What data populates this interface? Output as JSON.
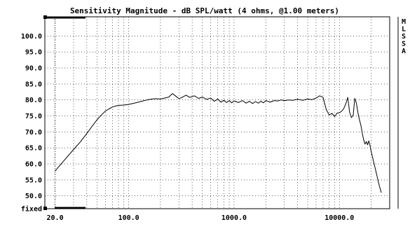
{
  "chart_data": {
    "type": "line",
    "title": "Sensitivity Magnitude - dB SPL/watt (4 ohms, @1.00 meters)",
    "xlabel": "",
    "ylabel": "",
    "x_scale": "log",
    "xlim": [
      16,
      30000
    ],
    "ylim": [
      46,
      106
    ],
    "y_ticks": [
      50,
      55,
      60,
      65,
      70,
      75,
      80,
      85,
      90,
      95,
      100
    ],
    "y_tick_labels": [
      "50.0",
      "55.0",
      "60.0",
      "65.0",
      "70.0",
      "75.0",
      "80.0",
      "85.0",
      "90.0",
      "95.0",
      "100.0"
    ],
    "y_bottom_label": "fixed",
    "x_ticks": [
      20,
      100,
      1000,
      10000
    ],
    "x_tick_labels": [
      "20.0",
      "100.0",
      "1000.0",
      "10000.0"
    ],
    "side_legend": [
      "M",
      "L",
      "S",
      "S",
      "A"
    ],
    "grid": true,
    "colors": {
      "line": "#000000",
      "grid": "#000000",
      "background": "#ffffff"
    },
    "series": [
      {
        "x": [
          20,
          25,
          30,
          35,
          40,
          45,
          50,
          55,
          60,
          65,
          70,
          75,
          80,
          90,
          100,
          120,
          140,
          160,
          180,
          200,
          220,
          240,
          260,
          280,
          300,
          320,
          350,
          380,
          420,
          460,
          500,
          550,
          600,
          650,
          700,
          750,
          800,
          850,
          900,
          950,
          1000,
          1100,
          1200,
          1300,
          1400,
          1500,
          1600,
          1700,
          1800,
          1900,
          2000,
          2200,
          2400,
          2600,
          2800,
          3000,
          3300,
          3600,
          4000,
          4500,
          5000,
          5500,
          6000,
          6500,
          7000,
          7500,
          8000,
          8500,
          9000,
          9500,
          10000,
          10500,
          11000,
          11500,
          12000,
          12500,
          13000,
          13500,
          14000,
          14500,
          15000,
          15500,
          16000,
          16500,
          17000,
          17500,
          18000,
          18500,
          19000,
          19500,
          20000,
          21000,
          22000,
          23000,
          24000,
          25000
        ],
        "y": [
          57.8,
          61.5,
          64.5,
          67.0,
          69.5,
          71.8,
          73.8,
          75.3,
          76.5,
          77.2,
          77.8,
          78.1,
          78.3,
          78.4,
          78.6,
          79.2,
          79.8,
          80.2,
          80.4,
          80.3,
          80.6,
          80.9,
          82.0,
          81.2,
          80.4,
          80.8,
          81.5,
          80.8,
          81.3,
          80.5,
          80.9,
          80.2,
          80.6,
          79.6,
          80.3,
          79.3,
          79.9,
          79.2,
          79.8,
          79.1,
          79.7,
          79.2,
          79.8,
          79.0,
          79.6,
          78.9,
          79.5,
          79.0,
          79.6,
          79.1,
          79.8,
          79.3,
          79.8,
          79.7,
          80.0,
          79.8,
          80.0,
          79.9,
          80.2,
          79.9,
          80.3,
          80.1,
          80.6,
          81.3,
          80.8,
          77.0,
          75.3,
          75.8,
          74.8,
          75.9,
          76.0,
          76.5,
          77.3,
          78.8,
          80.8,
          76.2,
          74.5,
          75.2,
          80.5,
          79.0,
          76.0,
          73.8,
          72.0,
          69.5,
          67.5,
          66.2,
          67.0,
          66.0,
          67.2,
          65.8,
          64.0,
          61.0,
          58.2,
          55.5,
          53.0,
          51.0
        ]
      }
    ]
  }
}
